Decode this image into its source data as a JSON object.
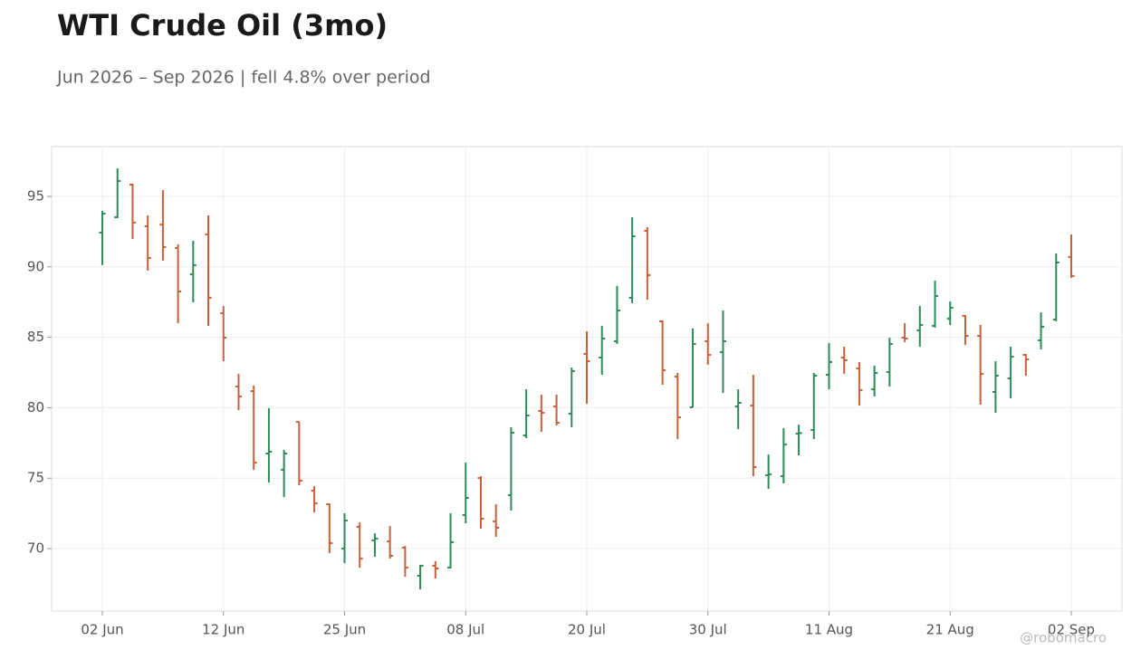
{
  "chart_data": {
    "type": "ohlc",
    "title": "WTI Crude Oil (3mo)",
    "subtitle": "Jun 2026 – Sep 2026 | fell 4.8% over period",
    "watermark": "@robomacro",
    "categories": [
      "02 Jun",
      null,
      null,
      null,
      null,
      null,
      null,
      null,
      "12 Jun",
      null,
      null,
      null,
      null,
      null,
      null,
      null,
      "25 Jun",
      null,
      null,
      null,
      null,
      null,
      null,
      null,
      "08 Jul",
      null,
      null,
      null,
      null,
      null,
      null,
      null,
      "20 Jul",
      null,
      null,
      null,
      null,
      null,
      null,
      null,
      "30 Jul",
      null,
      null,
      null,
      null,
      null,
      null,
      null,
      "11 Aug",
      null,
      null,
      null,
      null,
      null,
      null,
      null,
      "21 Aug",
      null,
      null,
      null,
      null,
      null,
      null,
      null,
      "02 Sep"
    ],
    "open": [
      92.43,
      93.52,
      95.84,
      92.88,
      93.0,
      91.34,
      89.47,
      92.3,
      86.71,
      81.5,
      81.18,
      76.75,
      75.6,
      79.0,
      74.11,
      73.15,
      70.0,
      71.54,
      70.58,
      70.51,
      70.06,
      68.07,
      68.78,
      68.65,
      72.38,
      75.01,
      71.93,
      73.79,
      78.03,
      79.77,
      80.09,
      79.58,
      83.82,
      83.56,
      84.72,
      87.8,
      92.56,
      86.13,
      82.21,
      80.03,
      84.72,
      83.95,
      80.09,
      80.15,
      75.21,
      75.14,
      78.16,
      78.42,
      82.34,
      83.56,
      82.79,
      81.31,
      82.53,
      84.97,
      85.49,
      85.81,
      86.32,
      86.52,
      85.1,
      81.12,
      82.08,
      83.75,
      84.78,
      86.26,
      90.7
    ],
    "high": [
      93.97,
      96.99,
      95.9,
      93.65,
      95.45,
      91.6,
      91.85,
      93.65,
      87.22,
      82.4,
      81.57,
      79.96,
      77.0,
      79.0,
      74.43,
      73.21,
      72.51,
      71.86,
      71.09,
      71.6,
      70.19,
      68.84,
      69.1,
      72.51,
      76.1,
      75.14,
      73.15,
      78.61,
      81.31,
      80.93,
      80.93,
      82.85,
      85.42,
      85.81,
      88.64,
      93.52,
      92.81,
      86.2,
      82.47,
      85.62,
      86.0,
      86.9,
      81.31,
      82.34,
      76.68,
      78.55,
      78.8,
      82.47,
      84.59,
      84.33,
      83.24,
      82.98,
      84.97,
      86.0,
      87.22,
      89.02,
      87.54,
      86.58,
      85.87,
      83.3,
      84.33,
      83.82,
      86.77,
      90.95,
      92.3
    ],
    "low": [
      90.12,
      93.46,
      91.98,
      89.73,
      90.44,
      86.0,
      87.48,
      85.81,
      83.3,
      79.83,
      75.6,
      74.69,
      73.66,
      74.5,
      72.57,
      69.68,
      68.97,
      68.65,
      69.42,
      69.29,
      68.0,
      67.11,
      67.88,
      68.59,
      71.8,
      71.41,
      70.84,
      72.7,
      77.84,
      78.29,
      78.74,
      78.61,
      80.28,
      82.34,
      84.52,
      87.42,
      87.67,
      81.63,
      77.78,
      80.03,
      83.05,
      81.05,
      78.48,
      75.14,
      74.24,
      74.63,
      76.62,
      77.78,
      81.31,
      82.4,
      80.15,
      80.8,
      81.5,
      84.65,
      84.33,
      85.68,
      85.87,
      84.46,
      80.22,
      79.64,
      80.67,
      82.27,
      84.14,
      86.13,
      89.22
    ],
    "close": [
      93.78,
      96.09,
      93.14,
      90.63,
      91.4,
      88.25,
      90.12,
      87.8,
      84.97,
      80.8,
      76.1,
      76.88,
      76.75,
      74.82,
      73.21,
      70.39,
      71.99,
      69.29,
      70.71,
      69.49,
      68.65,
      68.78,
      68.59,
      70.45,
      73.6,
      72.12,
      71.48,
      78.23,
      79.45,
      79.64,
      78.93,
      82.6,
      83.3,
      84.91,
      86.9,
      92.17,
      89.41,
      82.66,
      79.32,
      84.52,
      83.75,
      84.72,
      80.35,
      75.78,
      75.27,
      77.39,
      78.2,
      82.27,
      83.24,
      83.37,
      81.24,
      82.47,
      84.52,
      84.91,
      85.87,
      87.93,
      87.1,
      85.1,
      82.4,
      82.27,
      83.62,
      83.43,
      85.74,
      90.31,
      89.35
    ],
    "up_color": "#2e8b57",
    "down_color": "#c8603a",
    "ylim": [
      65.57,
      98.53
    ],
    "yticks": [
      70,
      75,
      80,
      85,
      90,
      95
    ],
    "grid": true
  }
}
